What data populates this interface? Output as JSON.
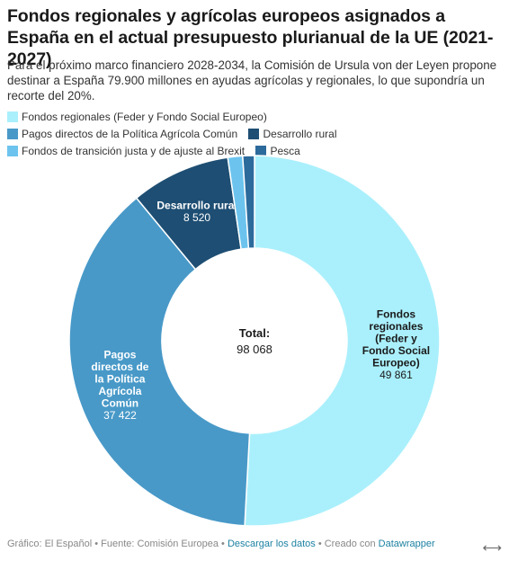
{
  "title": "Fondos regionales y agrícolas europeos asignados a España en el actual presupuesto plurianual de la UE (2021-2027)",
  "subtitle": "Para el próximo marco financiero 2028-2034, la Comisión de Ursula von der Leyen propone destinar a España 79.900 millones en ayudas agrícolas y regionales, lo que supondría un recorte del 20%.",
  "chart_data": {
    "type": "pie",
    "donut": true,
    "legend_position": "top",
    "center_label": "Total:",
    "center_value": "98 068",
    "total": 98068,
    "slices": [
      {
        "name": "Fondos regionales (Feder y Fondo Social Europeo)",
        "value": 49861,
        "value_label": "49 861",
        "color": "#aaf0fc",
        "label_lines": [
          "Fondos",
          "regionales",
          "(Feder y",
          "Fondo Social",
          "Europeo)"
        ]
      },
      {
        "name": "Pagos directos de la Política Agrícola Común",
        "value": 37422,
        "value_label": "37 422",
        "color": "#4899c8",
        "label_lines": [
          "Pagos",
          "directos de",
          "la Política",
          "Agrícola",
          "Común"
        ]
      },
      {
        "name": "Desarrollo rural",
        "value": 8520,
        "value_label": "8 520",
        "color": "#1e4e73",
        "label_lines": [
          "Desarrollo rural"
        ]
      },
      {
        "name": "Fondos de transición justa y de ajuste al Brexit",
        "value": 1265,
        "color": "#6cc4ee",
        "label_lines": []
      },
      {
        "name": "Pesca",
        "value": 1000,
        "color": "#2c6a9c",
        "label_lines": []
      }
    ]
  },
  "footer": {
    "source": "Gráfico: El Español • Fuente: Comisión Europea • ",
    "download_link": "Descargar los datos",
    "sep": " • Creado con ",
    "tool_link": "Datawrapper"
  },
  "icons": {
    "expand": "expand-arrows-icon"
  }
}
